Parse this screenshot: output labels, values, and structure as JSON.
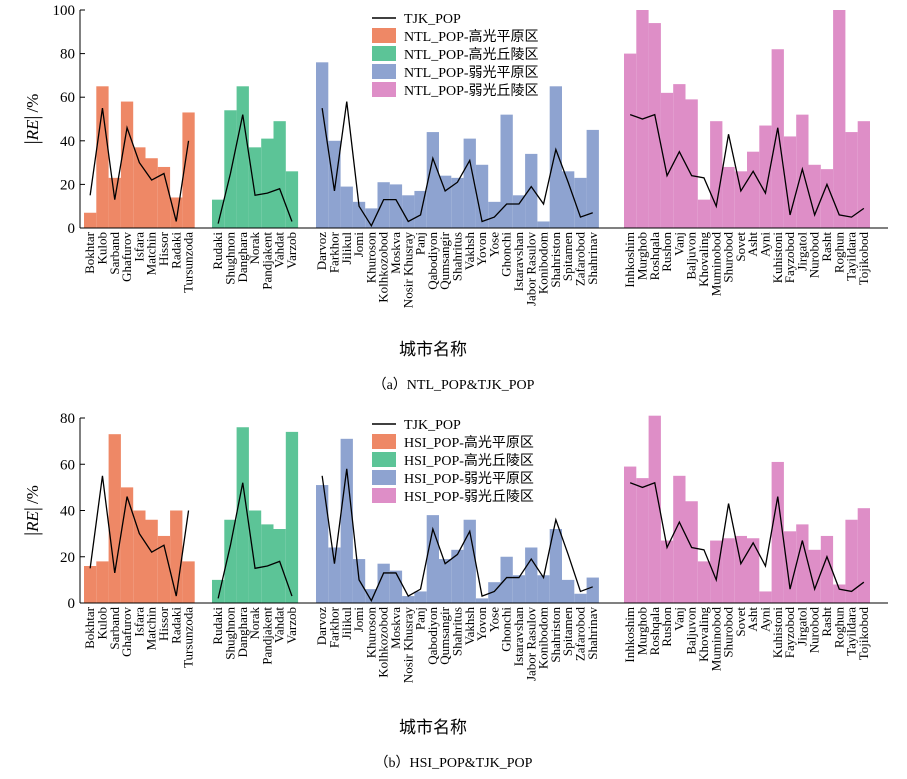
{
  "colors": {
    "high_plain": "#ee8866",
    "high_hill": "#5cc497",
    "weak_plain": "#8ea3d0",
    "weak_hill": "#de8ec7",
    "line": "#000000"
  },
  "chart_data": [
    {
      "type": "bar",
      "caption": "（a）NTL_POP&TJK_POP",
      "ylabel_main": "RE",
      "ylabel_unit": "/%",
      "xlabel": "城市名称",
      "ylim": [
        0,
        100
      ],
      "yticks": [
        0,
        20,
        40,
        60,
        80,
        100
      ],
      "legend_position": "top-center",
      "line_name": "TJK_POP",
      "series": [
        {
          "name": "NTL_POP-高光平原区",
          "color_key": "high_plain",
          "categories": [
            "Bokhtar",
            "Kulob",
            "Sarband",
            "Ghafurov",
            "Isfara",
            "Matchin",
            "Hissor",
            "Radaki",
            "Tursunzoda"
          ],
          "values": [
            7,
            65,
            23,
            58,
            37,
            32,
            28,
            14,
            53
          ],
          "line": [
            15,
            55,
            13,
            46,
            30,
            22,
            25,
            3,
            40
          ]
        },
        {
          "name": "NTL_POP-高光丘陵区",
          "color_key": "high_hill",
          "categories": [
            "Rudaki",
            "Shughnon",
            "Danghara",
            "Norak",
            "Pandjakent",
            "Vahdat",
            "Varzob"
          ],
          "values": [
            13,
            54,
            65,
            37,
            41,
            49,
            26
          ],
          "line": [
            2,
            25,
            52,
            15,
            16,
            18,
            3
          ]
        },
        {
          "name": "NTL_POP-弱光平原区",
          "color_key": "weak_plain",
          "categories": [
            "Darvoz",
            "Farkhor",
            "Jilikul",
            "Jomi",
            "Khuroson",
            "Kolhkozobod",
            "Moskva",
            "Nosir Khusray",
            "Panj",
            "Qabodiyon",
            "Qumsangir",
            "Shahritus",
            "Vakhsh",
            "Yovon",
            "Yose",
            "Ghonchi",
            "Istaravshan",
            "Jabor Rasulov",
            "Konibodom",
            "Shahriston",
            "Spitamen",
            "Zafarobod",
            "Shahrinav"
          ],
          "values": [
            76,
            40,
            19,
            12,
            9,
            21,
            20,
            15,
            17,
            44,
            24,
            23,
            41,
            29,
            12,
            52,
            15,
            34,
            3,
            65,
            26,
            23,
            45
          ],
          "line": [
            55,
            17,
            58,
            10,
            1,
            13,
            13,
            3,
            6,
            32,
            17,
            21,
            31,
            3,
            5,
            11,
            11,
            19,
            11,
            36,
            21,
            5,
            7
          ]
        },
        {
          "name": "NTL_POP-弱光丘陵区",
          "color_key": "weak_hill",
          "categories": [
            "Inhkoshim",
            "Murghob",
            "Roshqala",
            "Rushon",
            "Vanj",
            "Baljuvon",
            "Khovaling",
            "Muminobod",
            "Shurobod",
            "Sovet",
            "Asht",
            "Ayni",
            "Kuhistoni",
            "Fayzobod",
            "Jirgatol",
            "Nurobod",
            "Rasht",
            "Roghun",
            "Tayildara",
            "Tojikobod"
          ],
          "values": [
            80,
            100,
            94,
            62,
            66,
            59,
            13,
            49,
            28,
            26,
            35,
            47,
            82,
            42,
            52,
            29,
            27,
            100,
            44,
            49
          ],
          "line": [
            52,
            50,
            52,
            24,
            35,
            24,
            23,
            10,
            43,
            17,
            26,
            16,
            46,
            6,
            27,
            6,
            20,
            6,
            5,
            9
          ]
        }
      ]
    },
    {
      "type": "bar",
      "caption": "（b）HSI_POP&TJK_POP",
      "ylabel_main": "RE",
      "ylabel_unit": "/%",
      "xlabel": "城市名称",
      "ylim": [
        0,
        80
      ],
      "yticks": [
        0,
        20,
        40,
        60,
        80
      ],
      "legend_position": "top-center",
      "line_name": "TJK_POP",
      "series": [
        {
          "name": "HSI_POP-高光平原区",
          "color_key": "high_plain",
          "categories": [
            "Bokhtar",
            "Kulob",
            "Sarband",
            "Ghafurov",
            "Isfara",
            "Matchin",
            "Hissor",
            "Radaki",
            "Tursunzoda"
          ],
          "values": [
            16,
            18,
            73,
            50,
            40,
            36,
            29,
            40,
            18
          ],
          "line": [
            15,
            55,
            13,
            46,
            30,
            22,
            25,
            3,
            40
          ]
        },
        {
          "name": "HSI_POP-高光丘陵区",
          "color_key": "high_hill",
          "categories": [
            "Rudaki",
            "Shughnon",
            "Danghara",
            "Norak",
            "Pandjakent",
            "Vahdat",
            "Varzob"
          ],
          "values": [
            10,
            36,
            76,
            40,
            34,
            32,
            74
          ],
          "line": [
            2,
            25,
            52,
            15,
            16,
            18,
            3
          ]
        },
        {
          "name": "HSI_POP-弱光平原区",
          "color_key": "weak_plain",
          "categories": [
            "Darvoz",
            "Farkhor",
            "Jilikul",
            "Jomi",
            "Khuroson",
            "Kolhkozobod",
            "Moskva",
            "Nosir Khusray",
            "Panj",
            "Qabodiyon",
            "Qumsangir",
            "Shahritus",
            "Vakhsh",
            "Yovon",
            "Yose",
            "Ghonchi",
            "Istaravshan",
            "Jabor Rasulov",
            "Konibodom",
            "Shahriston",
            "Spitamen",
            "Zafarobod",
            "Shahrinav"
          ],
          "values": [
            51,
            24,
            71,
            19,
            6,
            17,
            14,
            3,
            5,
            38,
            19,
            23,
            36,
            2,
            9,
            20,
            12,
            24,
            12,
            32,
            10,
            4,
            11
          ],
          "line": [
            55,
            17,
            58,
            10,
            1,
            13,
            13,
            3,
            6,
            32,
            17,
            21,
            31,
            3,
            5,
            11,
            11,
            19,
            11,
            36,
            21,
            5,
            7
          ]
        },
        {
          "name": "HSI_POP-弱光丘陵区",
          "color_key": "weak_hill",
          "categories": [
            "Inhkoshim",
            "Murghob",
            "Roshqala",
            "Rushon",
            "Vanj",
            "Baljuvon",
            "Khovaling",
            "Muminobod",
            "Shurobod",
            "Sovet",
            "Asht",
            "Ayni",
            "Kuhistoni",
            "Fayzobod",
            "Jirgatol",
            "Nurobod",
            "Rasht",
            "Roghun",
            "Tayildara",
            "Tojikobod"
          ],
          "values": [
            59,
            54,
            81,
            27,
            55,
            44,
            18,
            27,
            28,
            29,
            28,
            5,
            61,
            31,
            34,
            23,
            29,
            8,
            36,
            41
          ],
          "line": [
            52,
            50,
            52,
            24,
            35,
            24,
            23,
            10,
            43,
            17,
            26,
            16,
            46,
            6,
            27,
            6,
            20,
            6,
            5,
            9
          ]
        }
      ]
    }
  ]
}
